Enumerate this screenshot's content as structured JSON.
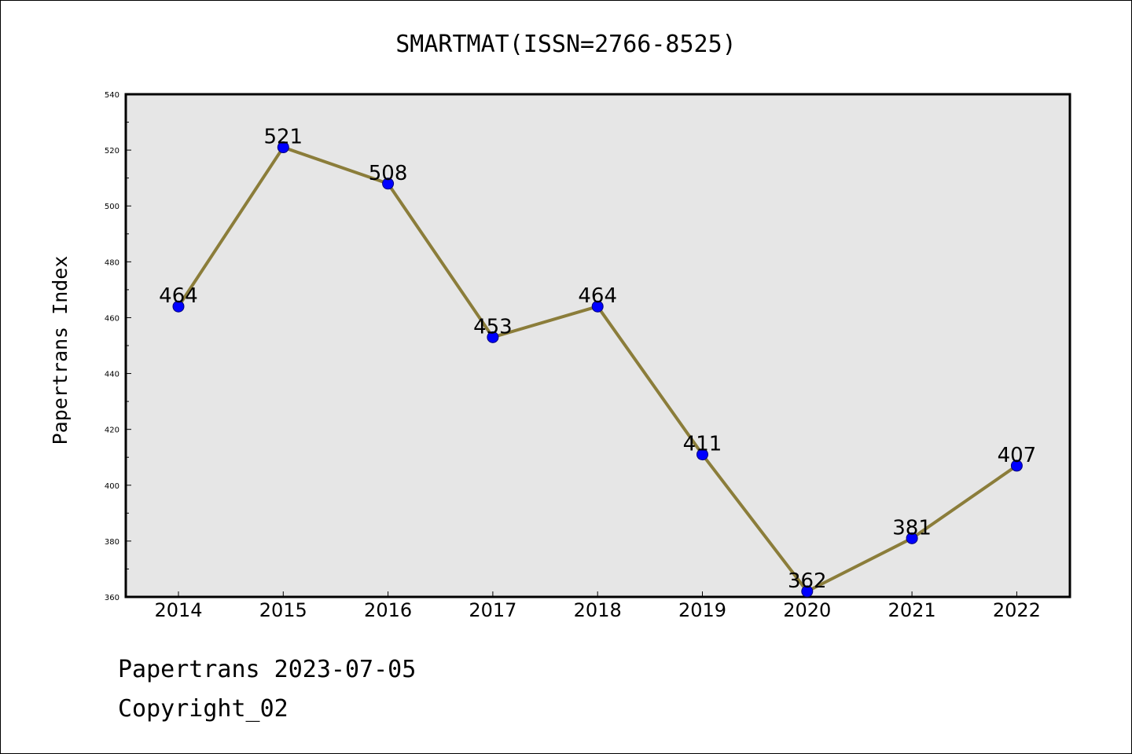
{
  "chart_data": {
    "type": "line",
    "title": "SMARTMAT(ISSN=2766-8525)",
    "xlabel": "",
    "ylabel": "Papertrans Index",
    "categories": [
      "2014",
      "2015",
      "2016",
      "2017",
      "2018",
      "2019",
      "2020",
      "2021",
      "2022"
    ],
    "series": [
      {
        "values": [
          464,
          521,
          508,
          453,
          464,
          411,
          362,
          381,
          407
        ]
      }
    ],
    "ylim": [
      360,
      540
    ],
    "yticks": [
      360,
      380,
      400,
      420,
      440,
      460,
      480,
      500,
      520,
      540
    ],
    "grid": false,
    "legend": "none",
    "data_labels": true,
    "colors": {
      "line": "#8b7d3a",
      "marker": "#0000ff",
      "plot_background": "#e6e6e6"
    }
  },
  "footer": {
    "date_text": "Papertrans 2023-07-05",
    "copyright_text": "Copyright_02"
  }
}
